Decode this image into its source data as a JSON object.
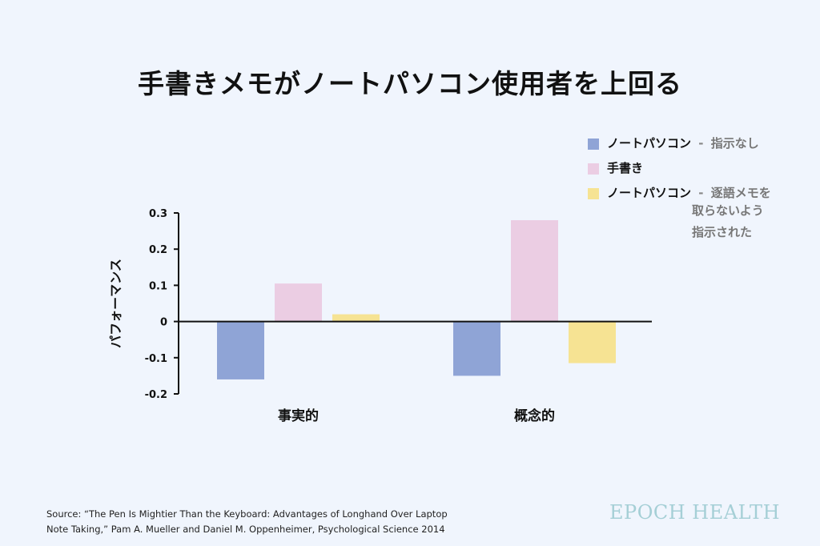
{
  "title": "手書きメモがノートパソコン使用者を上回る",
  "legend": {
    "items": [
      {
        "name": "ノートパソコン",
        "sep": "-",
        "note": "指示なし",
        "note2": "",
        "color": "#8fa4d6"
      },
      {
        "name": "手書き",
        "sep": "",
        "note": "",
        "note2": "",
        "color": "#ebcde3"
      },
      {
        "name": "ノートパソコン",
        "sep": "-",
        "note": "逐語メモを",
        "note2": "取らないよう\n指示された",
        "color": "#f6e393"
      }
    ]
  },
  "chart_data": {
    "type": "bar",
    "title": "手書きメモがノートパソコン使用者を上回る",
    "xlabel": "",
    "ylabel": "パフォーマンス",
    "ylim": [
      -0.2,
      0.3
    ],
    "yticks": [
      "0.3",
      "0.2",
      "0.1",
      "0",
      "-0.1",
      "-0.2"
    ],
    "categories": [
      "事実的",
      "概念的"
    ],
    "series": [
      {
        "name": "ノートパソコン - 指示なし",
        "values": [
          -0.16,
          -0.15
        ],
        "color": "#8fa4d6"
      },
      {
        "name": "手書き",
        "values": [
          0.105,
          0.28
        ],
        "color": "#ebcde3"
      },
      {
        "name": "ノートパソコン - 逐語メモを取らないよう指示された",
        "values": [
          0.02,
          -0.115
        ],
        "color": "#f6e393"
      }
    ],
    "legend": "top-right",
    "grid": false
  },
  "source": {
    "line1": "Source: “The Pen Is Mightier Than the Keyboard: Advantages of Longhand Over Laptop",
    "line2": "Note Taking,” Pam A. Mueller and Daniel M. Oppenheimer, Psychological Science 2014"
  },
  "brand": "EPOCH HEALTH"
}
